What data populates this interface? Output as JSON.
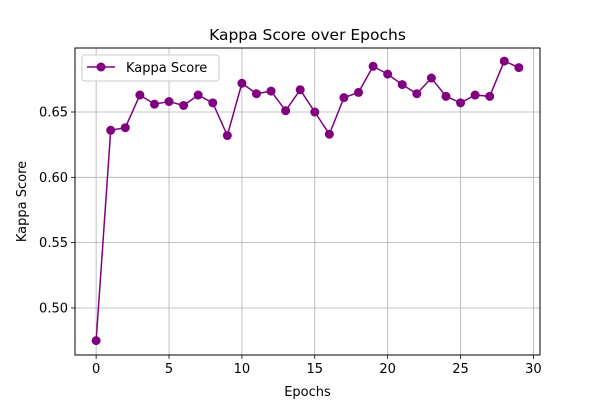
{
  "chart_data": {
    "type": "line",
    "title": "Kappa Score over Epochs",
    "xlabel": "Epochs",
    "ylabel": "Kappa Score",
    "xlim": [
      -1.45,
      30.45
    ],
    "ylim": [
      0.464,
      0.699
    ],
    "x_ticks": [
      0,
      5,
      10,
      15,
      20,
      25,
      30
    ],
    "y_ticks": [
      0.5,
      0.55,
      0.6,
      0.65
    ],
    "grid": true,
    "legend_position": "upper-left",
    "series": [
      {
        "name": "Kappa Score",
        "color": "#800080",
        "marker": "circle",
        "x": [
          0,
          1,
          2,
          3,
          4,
          5,
          6,
          7,
          8,
          9,
          10,
          11,
          12,
          13,
          14,
          15,
          16,
          17,
          18,
          19,
          20,
          21,
          22,
          23,
          24,
          25,
          26,
          27,
          28,
          29
        ],
        "values": [
          0.475,
          0.636,
          0.638,
          0.663,
          0.656,
          0.658,
          0.655,
          0.663,
          0.657,
          0.632,
          0.672,
          0.664,
          0.666,
          0.651,
          0.667,
          0.65,
          0.633,
          0.661,
          0.665,
          0.685,
          0.679,
          0.671,
          0.664,
          0.676,
          0.662,
          0.657,
          0.663,
          0.662,
          0.689,
          0.684
        ]
      }
    ]
  }
}
